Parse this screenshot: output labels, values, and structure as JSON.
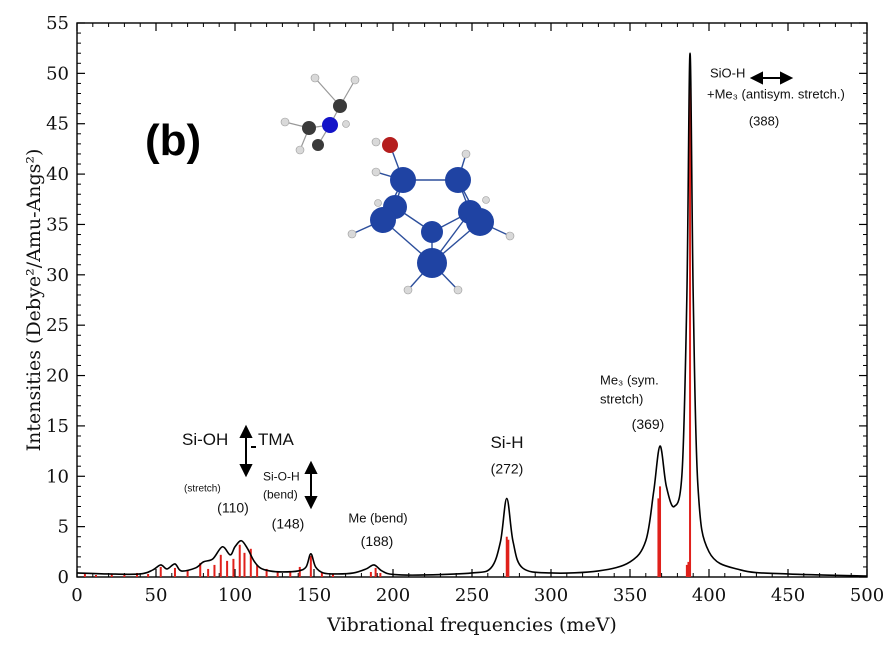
{
  "chart_data": {
    "type": "line",
    "panel_label": "(b)",
    "xlabel": "Vibrational frequencies (meV)",
    "ylabel": "Intensities (Debye²/Amu-Angs²)",
    "xlim": [
      0,
      500
    ],
    "ylim": [
      0,
      55
    ],
    "xticks": [
      0,
      50,
      100,
      150,
      200,
      250,
      300,
      350,
      400,
      450,
      500
    ],
    "yticks": [
      0,
      5,
      10,
      15,
      20,
      25,
      30,
      35,
      40,
      45,
      50,
      55
    ],
    "grid": false,
    "series": [
      {
        "style": "black smooth line (broadened spectrum)",
        "color": "#000000",
        "x": [
          0,
          20,
          40,
          48,
          53,
          57,
          62,
          66,
          75,
          80,
          86,
          92,
          97,
          100,
          104,
          108,
          112,
          116,
          122,
          130,
          140,
          145,
          148,
          151,
          156,
          165,
          175,
          183,
          188,
          193,
          200,
          220,
          250,
          262,
          268,
          272,
          276,
          282,
          300,
          330,
          350,
          360,
          365,
          369,
          373,
          378,
          383,
          386,
          388,
          390,
          393,
          400,
          420,
          450,
          500
        ],
        "y": [
          0.4,
          0.3,
          0.3,
          0.7,
          1.2,
          0.8,
          1.3,
          0.6,
          0.9,
          1.5,
          1.8,
          3.0,
          2.2,
          3.0,
          3.6,
          2.8,
          1.6,
          0.9,
          0.6,
          0.5,
          0.6,
          1.0,
          2.3,
          1.0,
          0.4,
          0.3,
          0.4,
          0.8,
          1.2,
          0.6,
          0.25,
          0.2,
          0.4,
          0.9,
          3.5,
          7.8,
          3.5,
          0.9,
          0.4,
          0.6,
          1.5,
          3.6,
          8.5,
          13.0,
          9.0,
          7.0,
          10.5,
          28.0,
          52.0,
          28.0,
          9.0,
          2.5,
          0.7,
          0.3,
          0.1
        ]
      },
      {
        "style": "red vertical sticks (calculated modes)",
        "color": "#e0201b",
        "x": [
          5,
          12,
          22,
          30,
          38,
          45,
          53,
          62,
          70,
          78,
          83,
          87,
          91,
          95,
          99,
          103,
          106,
          110,
          114,
          120,
          127,
          135,
          141,
          148,
          155,
          162,
          186,
          189,
          192,
          272,
          273,
          368,
          369,
          386,
          387,
          388
        ],
        "y": [
          0.3,
          0.2,
          0.3,
          0.2,
          0.4,
          0.3,
          1.0,
          0.9,
          0.6,
          1.4,
          0.8,
          1.2,
          2.2,
          1.6,
          1.8,
          3.2,
          2.4,
          2.8,
          1.2,
          0.8,
          0.5,
          0.6,
          1.0,
          2.1,
          0.5,
          0.3,
          0.5,
          0.9,
          0.4,
          4.0,
          3.7,
          7.8,
          9.0,
          1.2,
          1.5,
          50.0
        ]
      }
    ],
    "annotations": [
      {
        "text": "Si-OH",
        "x": 182,
        "y": 13.1,
        "size": 17,
        "anchor": "start"
      },
      {
        "text": "TMA",
        "x": 258,
        "y": 13.1,
        "size": 17,
        "anchor": "start"
      },
      {
        "text": "(stretch)",
        "x": 184,
        "y": 8.5,
        "size": 10,
        "anchor": "start"
      },
      {
        "text": "(110)",
        "x": 233,
        "y": 6.4,
        "size": 14,
        "anchor": "middle"
      },
      {
        "text": "Si-O-H",
        "x": 263,
        "y": 9.6,
        "size": 12,
        "anchor": "start"
      },
      {
        "text": "(bend)",
        "x": 263,
        "y": 7.8,
        "size": 12,
        "anchor": "start"
      },
      {
        "text": "(148)",
        "x": 288,
        "y": 4.8,
        "size": 14,
        "anchor": "middle"
      },
      {
        "text": "Me (bend)",
        "x": 378,
        "y": 5.4,
        "size": 13,
        "anchor": "middle"
      },
      {
        "text": "(188)",
        "x": 377,
        "y": 3.1,
        "size": 14,
        "anchor": "middle"
      },
      {
        "text": "Si-H",
        "x": 507,
        "y": 12.8,
        "size": 17,
        "anchor": "middle"
      },
      {
        "text": "(272)",
        "x": 507,
        "y": 10.3,
        "size": 14,
        "anchor": "middle"
      },
      {
        "text": "Me₃ (sym.",
        "x": 600,
        "y": 19.1,
        "size": 13,
        "anchor": "start"
      },
      {
        "text": "stretch)",
        "x": 600,
        "y": 17.2,
        "size": 13,
        "anchor": "start"
      },
      {
        "text": "(369)",
        "x": 648,
        "y": 14.7,
        "size": 14,
        "anchor": "middle"
      },
      {
        "text": "SiO-H",
        "x": 710,
        "y": 49.6,
        "size": 13,
        "anchor": "start"
      },
      {
        "text": "+Me₃ (antisym. stretch.)",
        "x": 707,
        "y": 47.5,
        "size": 13,
        "anchor": "start"
      },
      {
        "text": "(388)",
        "x": 764,
        "y": 44.8,
        "size": 13,
        "anchor": "middle"
      }
    ]
  }
}
